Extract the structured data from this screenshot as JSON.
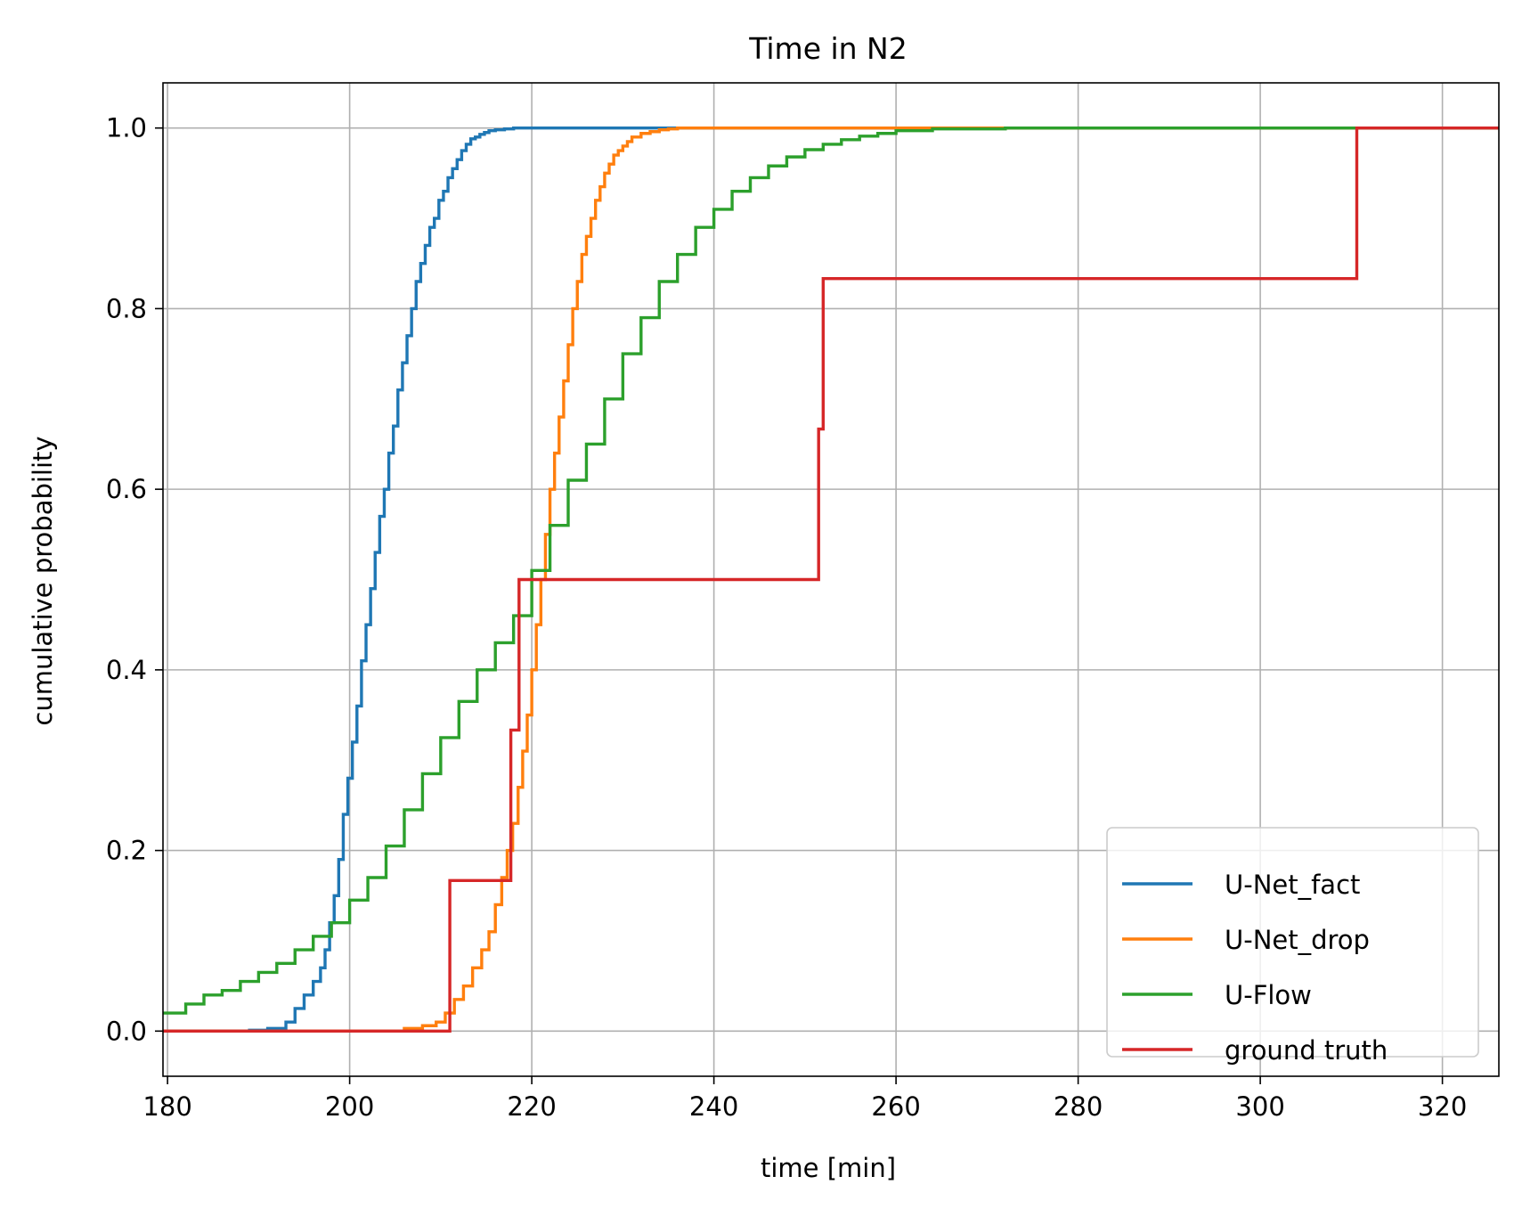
{
  "chart_data": {
    "type": "line",
    "title": "Time in N2",
    "xlabel": "time [min]",
    "ylabel": "cumulative probability",
    "xlim": [
      179.5,
      326.2
    ],
    "ylim": [
      -0.05,
      1.05
    ],
    "xticks": [
      180,
      200,
      220,
      240,
      260,
      280,
      300,
      320
    ],
    "xtick_labels": [
      "180",
      "200",
      "220",
      "240",
      "260",
      "280",
      "300",
      "320"
    ],
    "yticks": [
      0.0,
      0.2,
      0.4,
      0.6,
      0.8,
      1.0
    ],
    "ytick_labels": [
      "0.0",
      "0.2",
      "0.4",
      "0.6",
      "0.8",
      "1.0"
    ],
    "grid": true,
    "legend": "lower right",
    "drawstyle": "steps-post",
    "series": [
      {
        "name": "U-Net_fact",
        "color": "#1f77b4",
        "x": [
          179.5,
          189,
          191,
          193,
          194,
          195,
          196,
          196.8,
          197.3,
          197.8,
          198.3,
          198.8,
          199.3,
          199.8,
          200.3,
          200.8,
          201.3,
          201.8,
          202.3,
          202.8,
          203.3,
          203.8,
          204.3,
          204.8,
          205.3,
          205.8,
          206.3,
          206.8,
          207.3,
          207.8,
          208.3,
          208.8,
          209.3,
          209.8,
          210.3,
          210.8,
          211.3,
          211.8,
          212.3,
          212.8,
          213.3,
          213.8,
          214.3,
          214.8,
          215.3,
          216,
          217,
          218,
          220,
          326.2
        ],
        "y": [
          0,
          0.001,
          0.003,
          0.01,
          0.025,
          0.04,
          0.055,
          0.07,
          0.09,
          0.12,
          0.15,
          0.19,
          0.24,
          0.28,
          0.32,
          0.36,
          0.41,
          0.45,
          0.49,
          0.53,
          0.57,
          0.6,
          0.64,
          0.67,
          0.71,
          0.74,
          0.77,
          0.8,
          0.83,
          0.85,
          0.87,
          0.89,
          0.9,
          0.92,
          0.93,
          0.945,
          0.955,
          0.965,
          0.975,
          0.982,
          0.988,
          0.99,
          0.993,
          0.995,
          0.997,
          0.998,
          0.999,
          1.0,
          1.0,
          1.0
        ]
      },
      {
        "name": "U-Net_drop",
        "color": "#ff7f0e",
        "x": [
          179.5,
          206,
          208,
          209.5,
          210.5,
          211.5,
          212.5,
          213.5,
          214.5,
          215.3,
          216,
          216.7,
          217.3,
          217.9,
          218.5,
          219,
          219.5,
          220,
          220.5,
          221,
          221.5,
          222,
          222.5,
          223,
          223.5,
          224,
          224.5,
          225,
          225.5,
          226,
          226.5,
          227,
          227.5,
          228,
          228.5,
          229,
          229.5,
          230,
          230.5,
          231,
          232,
          233,
          234,
          235,
          236,
          238,
          240,
          326.2
        ],
        "y": [
          0,
          0.003,
          0.006,
          0.01,
          0.02,
          0.035,
          0.05,
          0.07,
          0.09,
          0.11,
          0.14,
          0.17,
          0.2,
          0.23,
          0.27,
          0.31,
          0.35,
          0.4,
          0.45,
          0.5,
          0.55,
          0.6,
          0.64,
          0.68,
          0.72,
          0.76,
          0.8,
          0.83,
          0.86,
          0.88,
          0.9,
          0.92,
          0.935,
          0.95,
          0.96,
          0.97,
          0.975,
          0.98,
          0.985,
          0.99,
          0.994,
          0.996,
          0.998,
          0.999,
          1.0,
          1.0,
          1.0,
          1.0
        ]
      },
      {
        "name": "U-Flow",
        "color": "#2ca02c",
        "x": [
          179.5,
          182,
          184,
          186,
          188,
          190,
          192,
          194,
          196,
          198,
          200,
          202,
          204,
          206,
          208,
          210,
          212,
          214,
          216,
          218,
          220,
          222,
          224,
          226,
          228,
          230,
          232,
          234,
          236,
          238,
          240,
          242,
          244,
          246,
          248,
          250,
          252,
          254,
          256,
          258,
          260,
          264,
          272,
          326.2
        ],
        "y": [
          0.02,
          0.03,
          0.04,
          0.045,
          0.055,
          0.065,
          0.075,
          0.09,
          0.105,
          0.12,
          0.145,
          0.17,
          0.205,
          0.245,
          0.285,
          0.325,
          0.365,
          0.4,
          0.43,
          0.46,
          0.51,
          0.56,
          0.61,
          0.65,
          0.7,
          0.75,
          0.79,
          0.83,
          0.86,
          0.89,
          0.91,
          0.93,
          0.945,
          0.958,
          0.968,
          0.976,
          0.982,
          0.987,
          0.991,
          0.994,
          0.997,
          0.999,
          1.0,
          1.0
        ]
      },
      {
        "name": "ground truth",
        "color": "#d62728",
        "x": [
          179.5,
          211,
          217.7,
          218.6,
          251.5,
          252,
          310.6,
          326.2
        ],
        "y": [
          0,
          0.1667,
          0.3333,
          0.5,
          0.6667,
          0.8333,
          1.0,
          1.0
        ]
      }
    ]
  }
}
